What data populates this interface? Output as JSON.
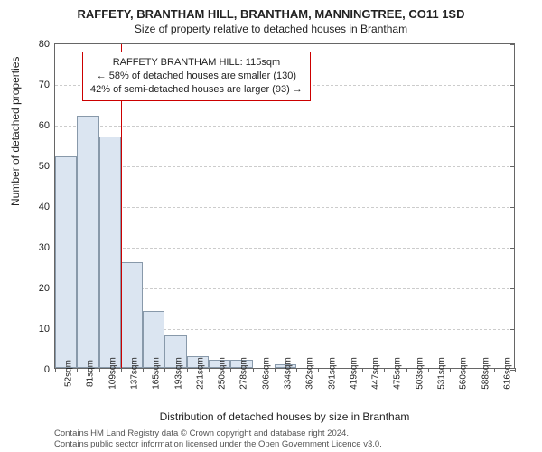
{
  "title_main": "RAFFETY, BRANTHAM HILL, BRANTHAM, MANNINGTREE, CO11 1SD",
  "title_sub": "Size of property relative to detached houses in Brantham",
  "y_axis_label": "Number of detached properties",
  "x_axis_label": "Distribution of detached houses by size in Brantham",
  "footer_line1": "Contains HM Land Registry data © Crown copyright and database right 2024.",
  "footer_line2": "Contains public sector information licensed under the Open Government Licence v3.0.",
  "chart": {
    "type": "histogram",
    "ylim": [
      0,
      80
    ],
    "ytick_step": 10,
    "y_ticks": [
      0,
      10,
      20,
      30,
      40,
      50,
      60,
      70,
      80
    ],
    "x_tick_labels": [
      "52sqm",
      "81sqm",
      "109sqm",
      "137sqm",
      "165sqm",
      "193sqm",
      "221sqm",
      "250sqm",
      "278sqm",
      "306sqm",
      "334sqm",
      "362sqm",
      "391sqm",
      "419sqm",
      "447sqm",
      "475sqm",
      "503sqm",
      "531sqm",
      "560sqm",
      "588sqm",
      "616sqm"
    ],
    "bar_values": [
      52,
      62,
      57,
      26,
      14,
      8,
      3,
      2,
      2,
      0,
      1,
      0,
      0,
      0,
      0,
      0,
      0,
      0,
      0,
      0,
      0
    ],
    "bar_fill": "#dbe5f1",
    "bar_stroke": "#8899aa",
    "grid_color": "#cccccc",
    "axis_color": "#666666",
    "background": "#ffffff",
    "marker": {
      "bin_index": 2,
      "color": "#cc0000"
    },
    "annotation": {
      "line1": "RAFFETY BRANTHAM HILL: 115sqm",
      "line2": "← 58% of detached houses are smaller (130)",
      "line3": "42% of semi-detached houses are larger (93) →",
      "border_color": "#cc0000",
      "fontsize": 11
    }
  }
}
